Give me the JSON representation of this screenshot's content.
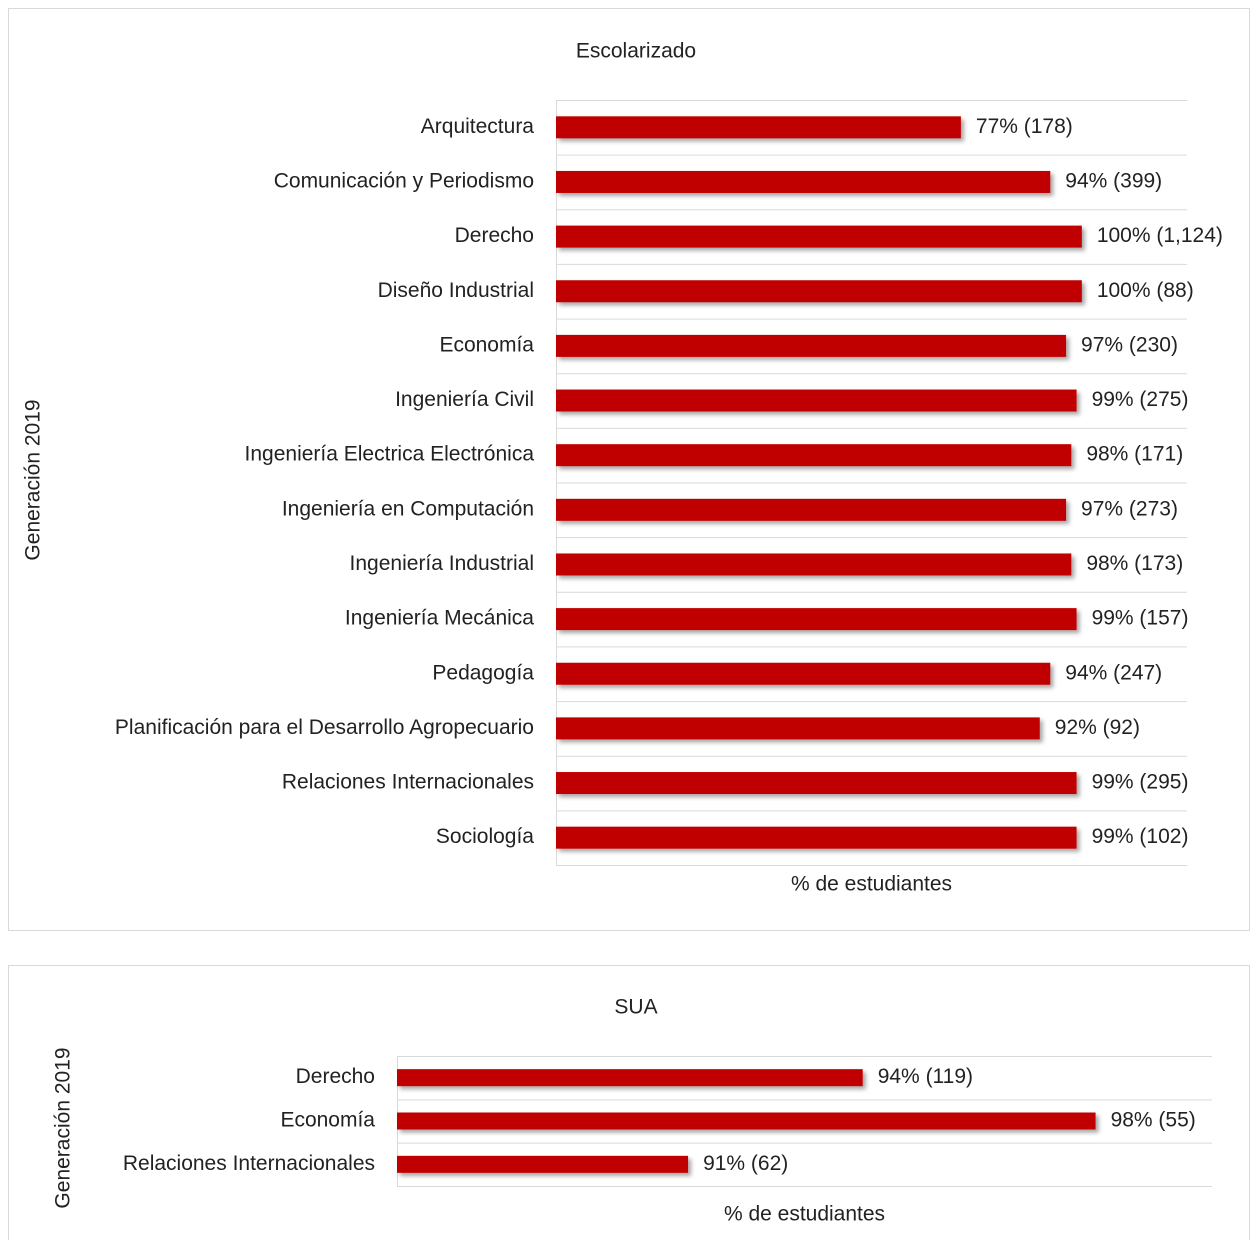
{
  "chart_data": [
    {
      "type": "bar",
      "orientation": "horizontal",
      "title": "Escolarizado",
      "ylabel": "Generación 2019",
      "xlabel": "% de estudiantes",
      "categories": [
        "Arquitectura",
        "Comunicación y Periodismo",
        "Derecho",
        "Diseño Industrial",
        "Economía",
        "Ingeniería Civil",
        "Ingeniería Electrica Electrónica",
        "Ingeniería en Computación",
        "Ingeniería Industrial",
        "Ingeniería Mecánica",
        "Pedagogía",
        "Planificación para el Desarrollo Agropecuario",
        "Relaciones Internacionales",
        "Sociología"
      ],
      "values": [
        77,
        94,
        100,
        100,
        97,
        99,
        98,
        97,
        98,
        99,
        94,
        92,
        99,
        99
      ],
      "value_labels": [
        "77% (178)",
        "94% (399)",
        "100% (1,124)",
        "100% (88)",
        "97% (230)",
        "99% (275)",
        "98% (171)",
        "97% (273)",
        "98% (173)",
        "99% (157)",
        "94% (247)",
        "92% (92)",
        "99% (295)",
        "99% (102)"
      ],
      "color": "#c00000",
      "xlim": [
        0,
        120
      ]
    },
    {
      "type": "bar",
      "orientation": "horizontal",
      "title": "SUA",
      "ylabel": "Generación 2019",
      "xlabel": "% de estudiantes",
      "categories": [
        "Derecho",
        "Economía",
        "Relaciones Internacionales"
      ],
      "values": [
        94,
        98,
        91
      ],
      "value_labels": [
        "94% (119)",
        "98% (55)",
        "91% (62)"
      ],
      "color": "#c00000",
      "xlim": [
        86,
        100
      ]
    }
  ]
}
